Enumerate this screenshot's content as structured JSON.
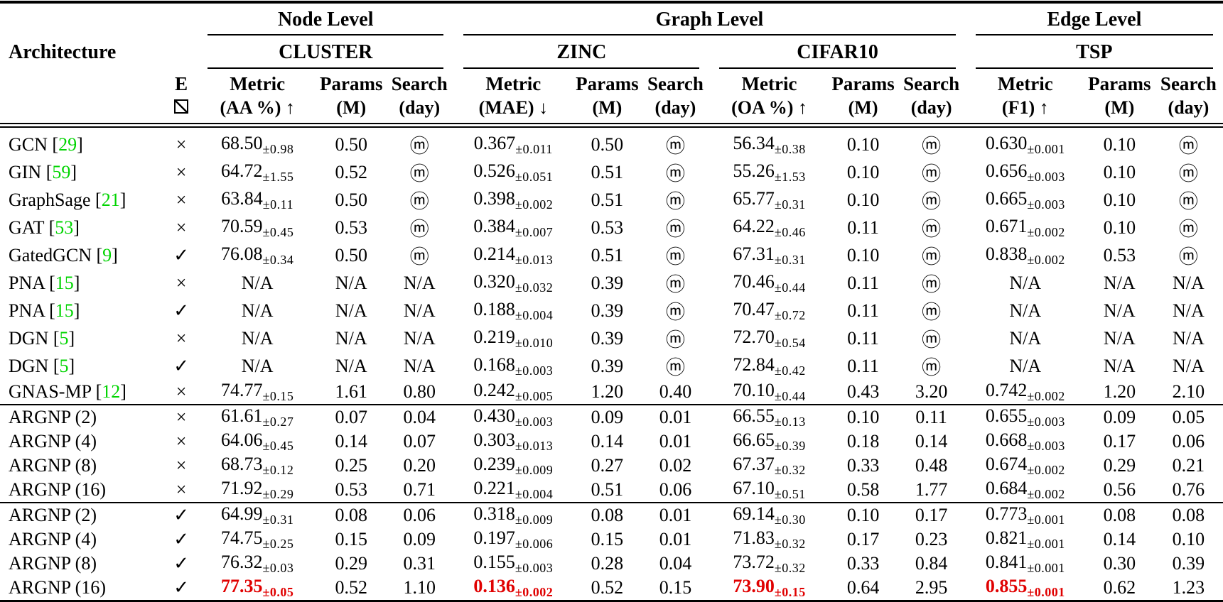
{
  "colors": {
    "citation": "#00d400",
    "best": "#e00000",
    "text": "#000000",
    "background": "#ffffff"
  },
  "header": {
    "architecture": "Architecture",
    "e_label": "E",
    "levels": [
      {
        "label": "Node Level"
      },
      {
        "label": "Graph Level"
      },
      {
        "label": "Edge Level"
      }
    ],
    "datasets": [
      {
        "name": "CLUSTER",
        "metric": [
          "Metric",
          "(AA %) ↑"
        ],
        "params": [
          "Params",
          "(M)"
        ],
        "search": [
          "Search",
          "(day)"
        ]
      },
      {
        "name": "ZINC",
        "metric": [
          "Metric",
          "(MAE) ↓"
        ],
        "params": [
          "Params",
          "(M)"
        ],
        "search": [
          "Search",
          "(day)"
        ]
      },
      {
        "name": "CIFAR10",
        "metric": [
          "Metric",
          "(OA %) ↑"
        ],
        "params": [
          "Params",
          "(M)"
        ],
        "search": [
          "Search",
          "(day)"
        ]
      },
      {
        "name": "TSP",
        "metric": [
          "Metric",
          "(F1) ↑"
        ],
        "params": [
          "Params",
          "(M)"
        ],
        "search": [
          "Search",
          "(day)"
        ]
      }
    ]
  },
  "symbols": {
    "manual_design": "ⓜ",
    "with_edge": "✓",
    "without_edge": "×",
    "edge_checkbox": "slashed-box"
  },
  "blocks": [
    {
      "rows": [
        {
          "arch": "GCN",
          "cite": "29",
          "e": "×",
          "cells": [
            {
              "v": "68.50",
              "s": "0.98",
              "p": "0.50",
              "d": "ⓜ"
            },
            {
              "v": "0.367",
              "s": "0.011",
              "p": "0.50",
              "d": "ⓜ"
            },
            {
              "v": "56.34",
              "s": "0.38",
              "p": "0.10",
              "d": "ⓜ"
            },
            {
              "v": "0.630",
              "s": "0.001",
              "p": "0.10",
              "d": "ⓜ"
            }
          ]
        },
        {
          "arch": "GIN",
          "cite": "59",
          "e": "×",
          "cells": [
            {
              "v": "64.72",
              "s": "1.55",
              "p": "0.52",
              "d": "ⓜ"
            },
            {
              "v": "0.526",
              "s": "0.051",
              "p": "0.51",
              "d": "ⓜ"
            },
            {
              "v": "55.26",
              "s": "1.53",
              "p": "0.10",
              "d": "ⓜ"
            },
            {
              "v": "0.656",
              "s": "0.003",
              "p": "0.10",
              "d": "ⓜ"
            }
          ]
        },
        {
          "arch": "GraphSage",
          "cite": "21",
          "e": "×",
          "cells": [
            {
              "v": "63.84",
              "s": "0.11",
              "p": "0.50",
              "d": "ⓜ"
            },
            {
              "v": "0.398",
              "s": "0.002",
              "p": "0.51",
              "d": "ⓜ"
            },
            {
              "v": "65.77",
              "s": "0.31",
              "p": "0.10",
              "d": "ⓜ"
            },
            {
              "v": "0.665",
              "s": "0.003",
              "p": "0.10",
              "d": "ⓜ"
            }
          ]
        },
        {
          "arch": "GAT",
          "cite": "53",
          "e": "×",
          "cells": [
            {
              "v": "70.59",
              "s": "0.45",
              "p": "0.53",
              "d": "ⓜ"
            },
            {
              "v": "0.384",
              "s": "0.007",
              "p": "0.53",
              "d": "ⓜ"
            },
            {
              "v": "64.22",
              "s": "0.46",
              "p": "0.11",
              "d": "ⓜ"
            },
            {
              "v": "0.671",
              "s": "0.002",
              "p": "0.10",
              "d": "ⓜ"
            }
          ]
        },
        {
          "arch": "GatedGCN",
          "cite": "9",
          "e": "✓",
          "cells": [
            {
              "v": "76.08",
              "s": "0.34",
              "p": "0.50",
              "d": "ⓜ"
            },
            {
              "v": "0.214",
              "s": "0.013",
              "p": "0.51",
              "d": "ⓜ"
            },
            {
              "v": "67.31",
              "s": "0.31",
              "p": "0.10",
              "d": "ⓜ"
            },
            {
              "v": "0.838",
              "s": "0.002",
              "p": "0.53",
              "d": "ⓜ"
            }
          ]
        },
        {
          "arch": "PNA",
          "cite": "15",
          "e": "×",
          "cells": [
            {
              "v": "N/A",
              "p": "N/A",
              "d": "N/A"
            },
            {
              "v": "0.320",
              "s": "0.032",
              "p": "0.39",
              "d": "ⓜ"
            },
            {
              "v": "70.46",
              "s": "0.44",
              "p": "0.11",
              "d": "ⓜ"
            },
            {
              "v": "N/A",
              "p": "N/A",
              "d": "N/A"
            }
          ]
        },
        {
          "arch": "PNA",
          "cite": "15",
          "e": "✓",
          "cells": [
            {
              "v": "N/A",
              "p": "N/A",
              "d": "N/A"
            },
            {
              "v": "0.188",
              "s": "0.004",
              "p": "0.39",
              "d": "ⓜ"
            },
            {
              "v": "70.47",
              "s": "0.72",
              "p": "0.11",
              "d": "ⓜ"
            },
            {
              "v": "N/A",
              "p": "N/A",
              "d": "N/A"
            }
          ]
        },
        {
          "arch": "DGN",
          "cite": "5",
          "e": "×",
          "cells": [
            {
              "v": "N/A",
              "p": "N/A",
              "d": "N/A"
            },
            {
              "v": "0.219",
              "s": "0.010",
              "p": "0.39",
              "d": "ⓜ"
            },
            {
              "v": "72.70",
              "s": "0.54",
              "p": "0.11",
              "d": "ⓜ"
            },
            {
              "v": "N/A",
              "p": "N/A",
              "d": "N/A"
            }
          ]
        },
        {
          "arch": "DGN",
          "cite": "5",
          "e": "✓",
          "cells": [
            {
              "v": "N/A",
              "p": "N/A",
              "d": "N/A"
            },
            {
              "v": "0.168",
              "s": "0.003",
              "p": "0.39",
              "d": "ⓜ"
            },
            {
              "v": "72.84",
              "s": "0.42",
              "p": "0.11",
              "d": "ⓜ"
            },
            {
              "v": "N/A",
              "p": "N/A",
              "d": "N/A"
            }
          ]
        },
        {
          "arch": "GNAS-MP",
          "cite": "12",
          "e": "×",
          "cells": [
            {
              "v": "74.77",
              "s": "0.15",
              "p": "1.61",
              "d": "0.80"
            },
            {
              "v": "0.242",
              "s": "0.005",
              "p": "1.20",
              "d": "0.40"
            },
            {
              "v": "70.10",
              "s": "0.44",
              "p": "0.43",
              "d": "3.20"
            },
            {
              "v": "0.742",
              "s": "0.002",
              "p": "1.20",
              "d": "2.10"
            }
          ]
        }
      ]
    },
    {
      "rows": [
        {
          "arch": "ARGNP (2)",
          "e": "×",
          "cells": [
            {
              "v": "61.61",
              "s": "0.27",
              "p": "0.07",
              "d": "0.04"
            },
            {
              "v": "0.430",
              "s": "0.003",
              "p": "0.09",
              "d": "0.01"
            },
            {
              "v": "66.55",
              "s": "0.13",
              "p": "0.10",
              "d": "0.11"
            },
            {
              "v": "0.655",
              "s": "0.003",
              "p": "0.09",
              "d": "0.05"
            }
          ]
        },
        {
          "arch": "ARGNP (4)",
          "e": "×",
          "cells": [
            {
              "v": "64.06",
              "s": "0.45",
              "p": "0.14",
              "d": "0.07"
            },
            {
              "v": "0.303",
              "s": "0.013",
              "p": "0.14",
              "d": "0.01"
            },
            {
              "v": "66.65",
              "s": "0.39",
              "p": "0.18",
              "d": "0.14"
            },
            {
              "v": "0.668",
              "s": "0.003",
              "p": "0.17",
              "d": "0.06"
            }
          ]
        },
        {
          "arch": "ARGNP (8)",
          "e": "×",
          "cells": [
            {
              "v": "68.73",
              "s": "0.12",
              "p": "0.25",
              "d": "0.20"
            },
            {
              "v": "0.239",
              "s": "0.009",
              "p": "0.27",
              "d": "0.02"
            },
            {
              "v": "67.37",
              "s": "0.32",
              "p": "0.33",
              "d": "0.48"
            },
            {
              "v": "0.674",
              "s": "0.002",
              "p": "0.29",
              "d": "0.21"
            }
          ]
        },
        {
          "arch": "ARGNP (16)",
          "e": "×",
          "cells": [
            {
              "v": "71.92",
              "s": "0.29",
              "p": "0.53",
              "d": "0.71"
            },
            {
              "v": "0.221",
              "s": "0.004",
              "p": "0.51",
              "d": "0.06"
            },
            {
              "v": "67.10",
              "s": "0.51",
              "p": "0.58",
              "d": "1.77"
            },
            {
              "v": "0.684",
              "s": "0.002",
              "p": "0.56",
              "d": "0.76"
            }
          ]
        }
      ]
    },
    {
      "rows": [
        {
          "arch": "ARGNP (2)",
          "e": "✓",
          "cells": [
            {
              "v": "64.99",
              "s": "0.31",
              "p": "0.08",
              "d": "0.06"
            },
            {
              "v": "0.318",
              "s": "0.009",
              "p": "0.08",
              "d": "0.01"
            },
            {
              "v": "69.14",
              "s": "0.30",
              "p": "0.10",
              "d": "0.17"
            },
            {
              "v": "0.773",
              "s": "0.001",
              "p": "0.08",
              "d": "0.08"
            }
          ]
        },
        {
          "arch": "ARGNP (4)",
          "e": "✓",
          "cells": [
            {
              "v": "74.75",
              "s": "0.25",
              "p": "0.15",
              "d": "0.09"
            },
            {
              "v": "0.197",
              "s": "0.006",
              "p": "0.15",
              "d": "0.01"
            },
            {
              "v": "71.83",
              "s": "0.32",
              "p": "0.17",
              "d": "0.23"
            },
            {
              "v": "0.821",
              "s": "0.001",
              "p": "0.14",
              "d": "0.10"
            }
          ]
        },
        {
          "arch": "ARGNP (8)",
          "e": "✓",
          "cells": [
            {
              "v": "76.32",
              "s": "0.03",
              "p": "0.29",
              "d": "0.31"
            },
            {
              "v": "0.155",
              "s": "0.003",
              "p": "0.28",
              "d": "0.04"
            },
            {
              "v": "73.72",
              "s": "0.32",
              "p": "0.33",
              "d": "0.84"
            },
            {
              "v": "0.841",
              "s": "0.001",
              "p": "0.30",
              "d": "0.39"
            }
          ]
        },
        {
          "arch": "ARGNP (16)",
          "e": "✓",
          "cells": [
            {
              "v": "77.35",
              "s": "0.05",
              "p": "0.52",
              "d": "1.10",
              "hl": true
            },
            {
              "v": "0.136",
              "s": "0.002",
              "p": "0.52",
              "d": "0.15",
              "hl": true
            },
            {
              "v": "73.90",
              "s": "0.15",
              "p": "0.64",
              "d": "2.95",
              "hl": true
            },
            {
              "v": "0.855",
              "s": "0.001",
              "p": "0.62",
              "d": "1.23",
              "hl": true
            }
          ]
        }
      ]
    }
  ]
}
